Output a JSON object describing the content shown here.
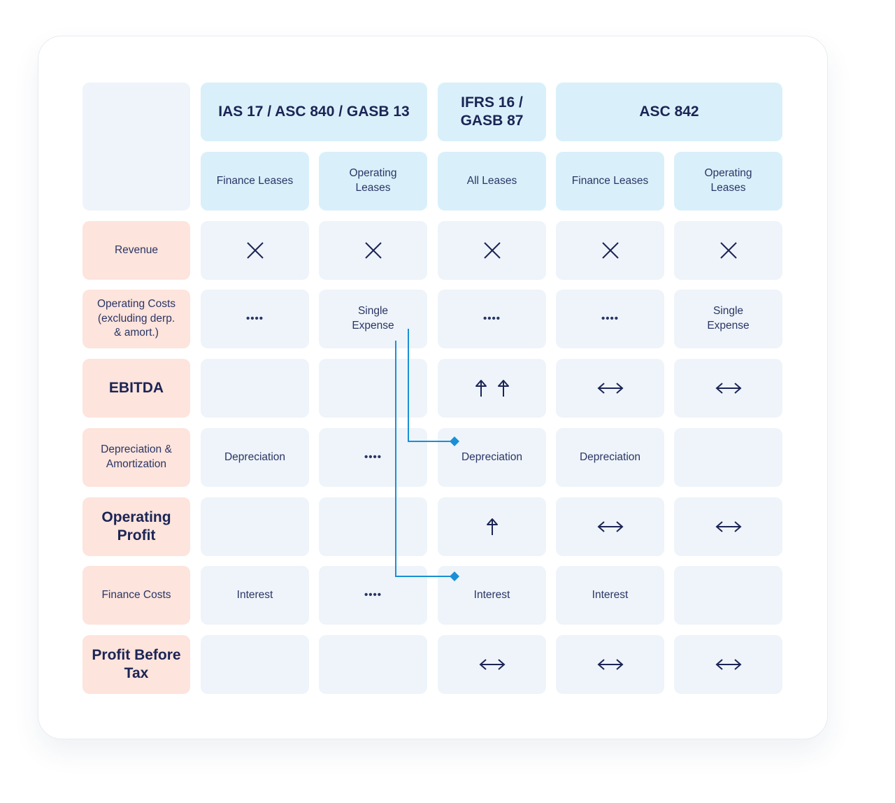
{
  "columns": {
    "groups": [
      {
        "label": "IAS 17 / ASC 840 / GASB 13"
      },
      {
        "label": "IFRS 16 /\nGASB 87"
      },
      {
        "label": "ASC 842"
      }
    ],
    "subs": [
      {
        "label": "Finance Leases"
      },
      {
        "label": "Operating\nLeases"
      },
      {
        "label": "All Leases"
      },
      {
        "label": "Finance Leases"
      },
      {
        "label": "Operating\nLeases"
      }
    ]
  },
  "rows": [
    {
      "label": "Revenue",
      "bold": false,
      "cells": [
        {
          "icon": "x-mark-icon"
        },
        {
          "icon": "x-mark-icon"
        },
        {
          "icon": "x-mark-icon"
        },
        {
          "icon": "x-mark-icon"
        },
        {
          "icon": "x-mark-icon"
        }
      ]
    },
    {
      "label": "Operating Costs\n(excluding derp.\n& amort.)",
      "bold": false,
      "cells": [
        {
          "text": "••••"
        },
        {
          "text": "Single\nExpense"
        },
        {
          "text": "••••"
        },
        {
          "text": "••••"
        },
        {
          "text": "Single\nExpense"
        }
      ]
    },
    {
      "label": "EBITDA",
      "bold": true,
      "cells": [
        {},
        {},
        {
          "icon": "double-up-arrow-icon"
        },
        {
          "icon": "left-right-arrow-icon"
        },
        {
          "icon": "left-right-arrow-icon"
        }
      ]
    },
    {
      "label": "Depreciation &\nAmortization",
      "bold": false,
      "cells": [
        {
          "text": "Depreciation"
        },
        {
          "text": "••••"
        },
        {
          "text": "Depreciation"
        },
        {
          "text": "Depreciation"
        },
        {}
      ]
    },
    {
      "label": "Operating\nProfit",
      "bold": true,
      "cells": [
        {},
        {},
        {
          "icon": "up-arrow-icon"
        },
        {
          "icon": "left-right-arrow-icon"
        },
        {
          "icon": "left-right-arrow-icon"
        }
      ]
    },
    {
      "label": "Finance Costs",
      "bold": false,
      "cells": [
        {
          "text": "Interest"
        },
        {
          "text": "••••"
        },
        {
          "text": "Interest"
        },
        {
          "text": "Interest"
        },
        {}
      ]
    },
    {
      "label": "Profit Before\nTax",
      "bold": true,
      "cells": [
        {},
        {},
        {
          "icon": "left-right-arrow-icon"
        },
        {
          "icon": "left-right-arrow-icon"
        },
        {
          "icon": "left-right-arrow-icon"
        }
      ]
    }
  ],
  "colors": {
    "header_bg": "#d9f0fa",
    "row_label_bg": "#fde4dc",
    "cell_bg": "#eef4f9",
    "text": "#1b2455",
    "connector": "#1a8fd6"
  }
}
